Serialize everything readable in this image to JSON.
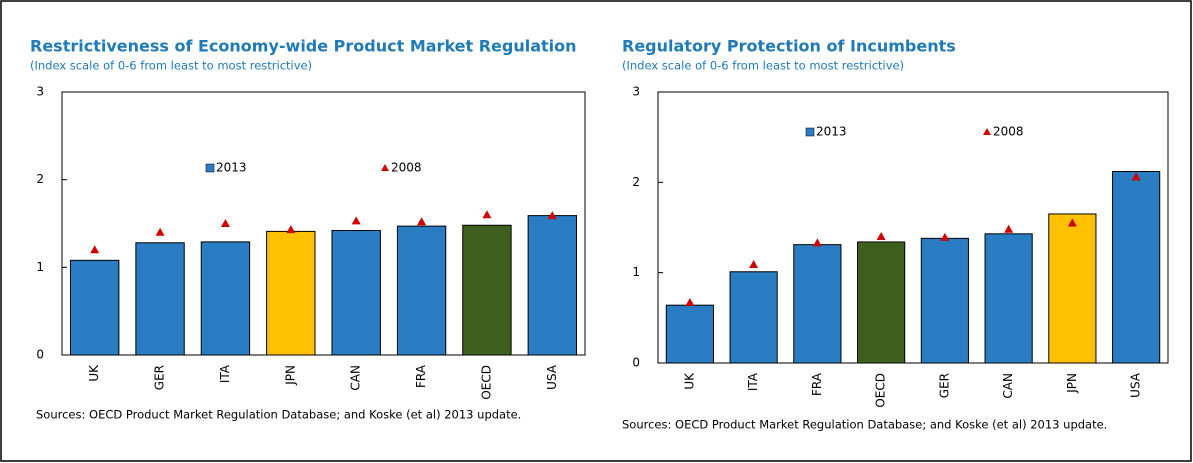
{
  "chart_data": [
    {
      "type": "bar",
      "title": "Restrictiveness of Economy-wide Product Market Regulation",
      "subtitle": "(Index scale of 0-6 from least to most restrictive)",
      "note": "Sources: OECD Product Market Regulation Database; and Koske (et al) 2013 update.",
      "categories": [
        "UK",
        "GER",
        "ITA",
        "JPN",
        "CAN",
        "FRA",
        "OECD",
        "USA"
      ],
      "series": [
        {
          "name": "2013",
          "type": "bar",
          "color": "#2a7dc2",
          "bar_colors": [
            "#2a7dc2",
            "#2a7dc2",
            "#2a7dc2",
            "#ffc000",
            "#2a7dc2",
            "#2a7dc2",
            "#3f5f1f",
            "#2a7dc2"
          ],
          "values": [
            1.08,
            1.28,
            1.29,
            1.41,
            1.42,
            1.47,
            1.48,
            1.59
          ]
        },
        {
          "name": "2008",
          "type": "scatter",
          "color": "#d00000",
          "values": [
            1.2,
            1.4,
            1.5,
            1.43,
            1.53,
            1.52,
            1.6,
            1.59
          ]
        }
      ],
      "ylim": [
        0,
        3
      ],
      "yticks": [
        0,
        1,
        2,
        3
      ]
    },
    {
      "type": "bar",
      "title": "Regulatory Protection of Incumbents",
      "subtitle": "(Index scale of 0-6 from least to most restrictive)",
      "note": "Sources: OECD Product Market Regulation Database; and Koske (et al) 2013 update.",
      "categories": [
        "UK",
        "ITA",
        "FRA",
        "OECD",
        "GER",
        "CAN",
        "JPN",
        "USA"
      ],
      "series": [
        {
          "name": "2013",
          "type": "bar",
          "color": "#2a7dc2",
          "bar_colors": [
            "#2a7dc2",
            "#2a7dc2",
            "#2a7dc2",
            "#3f5f1f",
            "#2a7dc2",
            "#2a7dc2",
            "#ffc000",
            "#2a7dc2"
          ],
          "values": [
            0.64,
            1.01,
            1.31,
            1.34,
            1.38,
            1.43,
            1.65,
            2.12
          ]
        },
        {
          "name": "2008",
          "type": "scatter",
          "color": "#d00000",
          "values": [
            0.67,
            1.09,
            1.33,
            1.4,
            1.39,
            1.48,
            1.55,
            2.06
          ]
        }
      ],
      "ylim": [
        0,
        3
      ],
      "yticks": [
        0,
        1,
        2,
        3
      ]
    }
  ]
}
